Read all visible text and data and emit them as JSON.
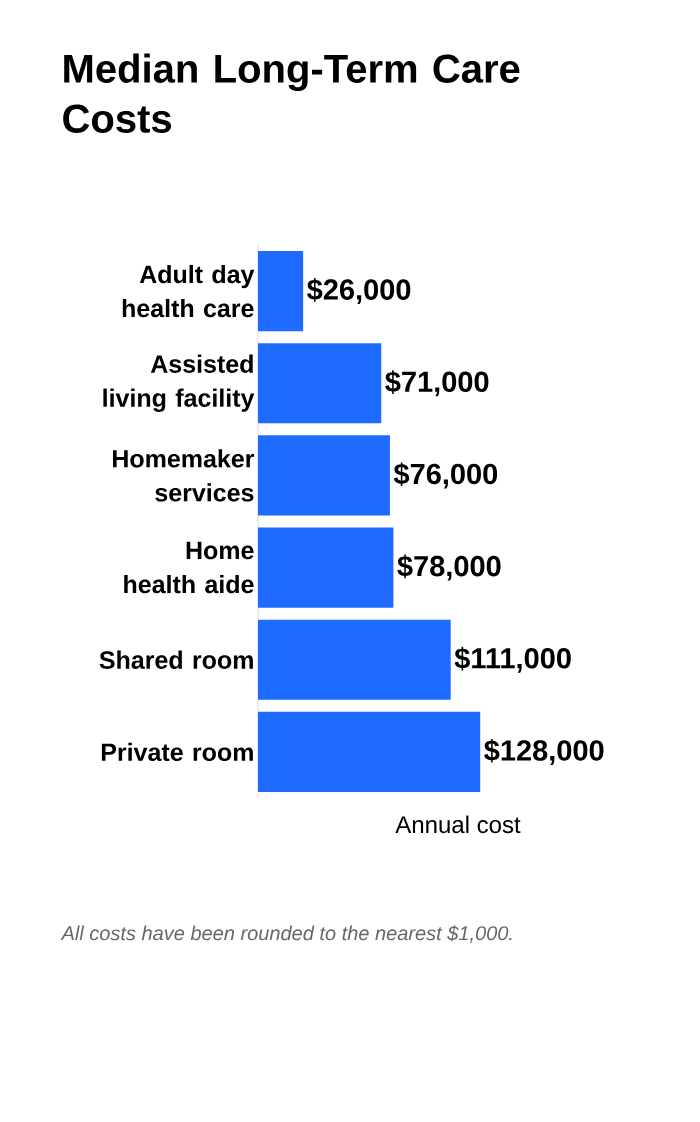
{
  "chart_data": {
    "type": "bar",
    "orientation": "horizontal",
    "title": "Median Long-Term Care Costs",
    "xlabel": "Annual cost",
    "categories": [
      "Adult day health care",
      "Assisted living facility",
      "Homemaker services",
      "Home health aide",
      "Shared room",
      "Private room"
    ],
    "values": [
      26000,
      71000,
      76000,
      78000,
      111000,
      128000
    ],
    "value_labels": [
      "$26,000",
      "$71,000",
      "$76,000",
      "$78,000",
      "$111,000",
      "$128,000"
    ],
    "color": "#1f6bff",
    "tick_labels": "y",
    "annotations": [
      "All costs have been rounded to the nearest $1,000."
    ]
  }
}
